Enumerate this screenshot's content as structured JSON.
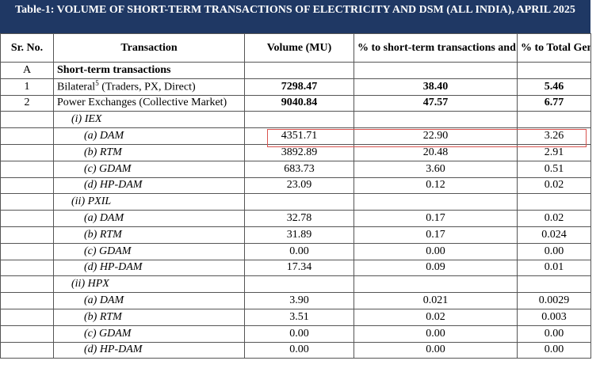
{
  "title": "Table-1: VOLUME OF SHORT-TERM TRANSACTIONS OF ELECTRICITY AND DSM (ALL INDIA), APRIL 2025",
  "headers": [
    "Sr. No.",
    "Transaction",
    "Volume (MU)",
    "% to short-term transactions and DSM Volume",
    "% to Total Generation"
  ],
  "rows": [
    {
      "sr": "A",
      "transaction": "Short-term transactions"
    },
    {
      "sr": "1",
      "transaction": "Bilateral",
      "footnote": "5",
      "detail": " (Traders, PX, Direct)",
      "volume": "7298.47",
      "pct_short_term": "38.40",
      "pct_generation": "5.46"
    },
    {
      "sr": "2",
      "transaction": "Power Exchanges (Collective Market)",
      "volume": "9040.84",
      "pct_short_term": "47.57",
      "pct_generation": "6.77"
    },
    {
      "transaction": "(i) IEX"
    },
    {
      "transaction": "(a) DAM",
      "volume": "4351.71",
      "pct_short_term": "22.90",
      "pct_generation": "3.26"
    },
    {
      "transaction": "(b) RTM",
      "volume": "3892.89",
      "pct_short_term": "20.48",
      "pct_generation": "2.91"
    },
    {
      "transaction": "(c) GDAM",
      "volume": "683.73",
      "pct_short_term": "3.60",
      "pct_generation": "0.51"
    },
    {
      "transaction": "(d) HP-DAM",
      "volume": "23.09",
      "pct_short_term": "0.12",
      "pct_generation": "0.02"
    },
    {
      "transaction": "(ii) PXIL"
    },
    {
      "transaction": "(a) DAM",
      "volume": "32.78",
      "pct_short_term": "0.17",
      "pct_generation": "0.02"
    },
    {
      "transaction": "(b) RTM",
      "volume": "31.89",
      "pct_short_term": "0.17",
      "pct_generation": "0.024"
    },
    {
      "transaction": "(c) GDAM",
      "volume": "0.00",
      "pct_short_term": "0.00",
      "pct_generation": "0.00"
    },
    {
      "transaction": "(d) HP-DAM",
      "volume": "17.34",
      "pct_short_term": "0.09",
      "pct_generation": "0.01"
    },
    {
      "transaction": "(ii) HPX"
    },
    {
      "transaction": "(a) DAM",
      "volume": "3.90",
      "pct_short_term": "0.021",
      "pct_generation": "0.0029"
    },
    {
      "transaction": "(b) RTM",
      "volume": "3.51",
      "pct_short_term": "0.02",
      "pct_generation": "0.003"
    },
    {
      "transaction": "(c) GDAM",
      "volume": "0.00",
      "pct_short_term": "0.00",
      "pct_generation": "0.00"
    },
    {
      "transaction": "(d) HP-DAM",
      "volume": "0.00",
      "pct_short_term": "0.00",
      "pct_generation": "0.00"
    }
  ]
}
